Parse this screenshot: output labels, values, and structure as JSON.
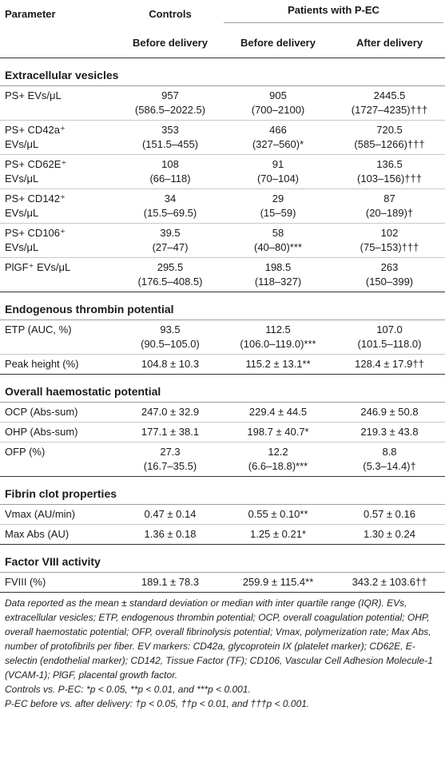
{
  "headers": {
    "parameter": "Parameter",
    "controls": "Controls",
    "patients": "Patients with P-EC",
    "controls_sub": "Before delivery",
    "patients_before": "Before delivery",
    "patients_after": "After delivery"
  },
  "sections": [
    {
      "title": "Extracellular vesicles",
      "rows": [
        {
          "param": [
            "PS+ EVs/μL"
          ],
          "controls": [
            "957",
            "(586.5–2022.5)"
          ],
          "before": [
            "905",
            "(700–2100)"
          ],
          "after": [
            "2445.5",
            "(1727–4235)†††"
          ]
        },
        {
          "param": [
            "PS+ CD42a⁺",
            "EVs/μL"
          ],
          "controls": [
            "353",
            "(151.5–455)"
          ],
          "before": [
            "466",
            "(327–560)*"
          ],
          "after": [
            "720.5",
            "(585–1266)†††"
          ]
        },
        {
          "param": [
            "PS+ CD62E⁺",
            "EVs/μL"
          ],
          "controls": [
            "108",
            "(66–118)"
          ],
          "before": [
            "91",
            "(70–104)"
          ],
          "after": [
            "136.5",
            "(103–156)†††"
          ]
        },
        {
          "param": [
            "PS+ CD142⁺",
            "EVs/μL"
          ],
          "controls": [
            "34",
            "(15.5–69.5)"
          ],
          "before": [
            "29",
            "(15–59)"
          ],
          "after": [
            "87",
            "(20–189)†"
          ]
        },
        {
          "param": [
            "PS+ CD106⁺",
            "EVs/μL"
          ],
          "controls": [
            "39.5",
            "(27–47)"
          ],
          "before": [
            "58",
            "(40–80)***"
          ],
          "after": [
            "102",
            "(75–153)†††"
          ]
        },
        {
          "param": [
            "PlGF⁺ EVs/μL"
          ],
          "controls": [
            "295.5",
            "(176.5–408.5)"
          ],
          "before": [
            "198.5",
            "(118–327)"
          ],
          "after": [
            "263",
            "(150–399)"
          ]
        }
      ]
    },
    {
      "title": "Endogenous thrombin potential",
      "rows": [
        {
          "param": [
            "ETP (AUC, %)"
          ],
          "controls": [
            "93.5",
            "(90.5–105.0)"
          ],
          "before": [
            "112.5",
            "(106.0–119.0)***"
          ],
          "after": [
            "107.0",
            "(101.5–118.0)"
          ]
        },
        {
          "param": [
            "Peak height (%)"
          ],
          "controls": [
            "104.8 ± 10.3"
          ],
          "before": [
            "115.2 ± 13.1**"
          ],
          "after": [
            "128.4 ± 17.9††"
          ]
        }
      ]
    },
    {
      "title": "Overall haemostatic potential",
      "rows": [
        {
          "param": [
            "OCP (Abs-sum)"
          ],
          "controls": [
            "247.0 ± 32.9"
          ],
          "before": [
            "229.4 ± 44.5"
          ],
          "after": [
            "246.9 ± 50.8"
          ]
        },
        {
          "param": [
            "OHP (Abs-sum)"
          ],
          "controls": [
            "177.1 ± 38.1"
          ],
          "before": [
            "198.7 ± 40.7*"
          ],
          "after": [
            "219.3 ± 43.8"
          ]
        },
        {
          "param": [
            "OFP (%)"
          ],
          "controls": [
            "27.3",
            "(16.7–35.5)"
          ],
          "before": [
            "12.2",
            "(6.6–18.8)***"
          ],
          "after": [
            "8.8",
            "(5.3–14.4)†"
          ]
        }
      ]
    },
    {
      "title": "Fibrin clot properties",
      "rows": [
        {
          "param": [
            "Vmax (AU/min)"
          ],
          "controls": [
            "0.47 ± 0.14"
          ],
          "before": [
            "0.55 ± 0.10**"
          ],
          "after": [
            "0.57 ± 0.16"
          ]
        },
        {
          "param": [
            "Max Abs (AU)"
          ],
          "controls": [
            "1.36 ± 0.18"
          ],
          "before": [
            "1.25 ± 0.21*"
          ],
          "after": [
            "1.30 ± 0.24"
          ]
        }
      ]
    },
    {
      "title": "Factor VIII activity",
      "rows": [
        {
          "param": [
            "FVIII (%)"
          ],
          "controls": [
            "189.1 ± 78.3"
          ],
          "before": [
            "259.9 ± 115.4**"
          ],
          "after": [
            "343.2 ± 103.6††"
          ]
        }
      ]
    }
  ],
  "notes": [
    "Data reported as the mean ± standard deviation or median with inter quartile range (IQR). EVs, extracellular vesicles; ETP, endogenous thrombin potential; OCP, overall coagulation potential; OHP, overall haemostatic potential; OFP, overall fibrinolysis potential; Vmax, polymerization rate; Max Abs, number of protofibrils per fiber. EV markers: CD42a, glycoprotein IX (platelet marker); CD62E, E-selectin (endothelial marker); CD142, Tissue Factor (TF); CD106, Vascular Cell Adhesion Molecule-1 (VCAM-1); PlGF, placental growth factor.",
    "Controls vs. P-EC: *p < 0.05, **p < 0.01, and ***p < 0.001.",
    "P-EC before vs. after delivery: †p < 0.05, ††p < 0.01, and †††p < 0.001."
  ]
}
